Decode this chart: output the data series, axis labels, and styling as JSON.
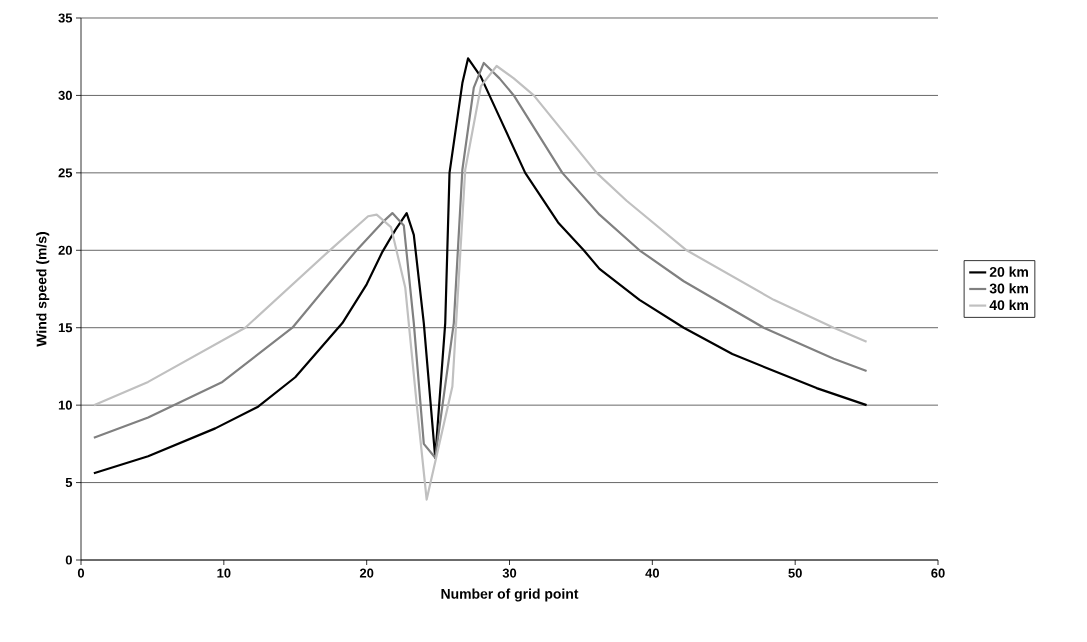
{
  "chart_data": {
    "type": "line",
    "xlabel": "Number of grid point",
    "ylabel": "Wind speed (m/s)",
    "xlim": [
      0,
      60
    ],
    "ylim": [
      0,
      35
    ],
    "xticks": [
      0,
      10,
      20,
      30,
      40,
      50,
      60
    ],
    "yticks": [
      0,
      5,
      10,
      15,
      20,
      25,
      30,
      35
    ],
    "grid": "y",
    "legend": "right",
    "line_style": "solid",
    "series": [
      {
        "name": "20 km",
        "color": "#000000",
        "x": [
          0.9,
          4.7,
          9.4,
          12.4,
          15,
          18.3,
          20,
          21.1,
          22,
          22.8,
          23.3,
          24,
          24.8,
          25.5,
          25.8,
          26.7,
          27.1,
          28,
          29.3,
          31.1,
          33.4,
          35.2,
          36.3,
          39.1,
          42.2,
          45.6,
          48,
          51.5,
          55
        ],
        "values": [
          5.6,
          6.7,
          8.5,
          9.9,
          11.8,
          15.3,
          17.8,
          19.9,
          21.3,
          22.4,
          21.0,
          15.3,
          6.6,
          15.3,
          25,
          30.8,
          32.4,
          31.2,
          28.6,
          25,
          21.8,
          20,
          18.8,
          16.8,
          15,
          13.3,
          12.4,
          11.1,
          10
        ]
      },
      {
        "name": "30 km",
        "color": "#808080",
        "x": [
          0.9,
          4.7,
          9.9,
          14.8,
          19.2,
          21.1,
          21.8,
          22.6,
          23.3,
          24,
          24.8,
          26.1,
          26.7,
          27.5,
          28.2,
          29.3,
          30.3,
          33.7,
          36.3,
          39.1,
          42.2,
          47.8,
          52.7,
          55
        ],
        "values": [
          7.9,
          9.2,
          11.5,
          15,
          19.9,
          21.8,
          22.4,
          21.6,
          15.3,
          7.5,
          6.6,
          15.3,
          25.2,
          30.5,
          32.1,
          31.1,
          30,
          25,
          22.3,
          20,
          18,
          15,
          13,
          12.2
        ]
      },
      {
        "name": "40 km",
        "color": "#c0c0c0",
        "x": [
          0.9,
          4.7,
          11.5,
          17.3,
          20.1,
          20.7,
          21.7,
          22.7,
          23.5,
          24.2,
          26,
          26.9,
          28,
          29.1,
          30.3,
          31.7,
          36.1,
          38.2,
          42.4,
          48.5,
          52.7,
          55
        ],
        "values": [
          10,
          11.5,
          15,
          19.9,
          22.2,
          22.3,
          21.5,
          17.6,
          10.1,
          3.9,
          11.2,
          25.2,
          30.6,
          31.9,
          31.1,
          30,
          25,
          23.2,
          20,
          16.8,
          15,
          14.1
        ]
      }
    ]
  }
}
